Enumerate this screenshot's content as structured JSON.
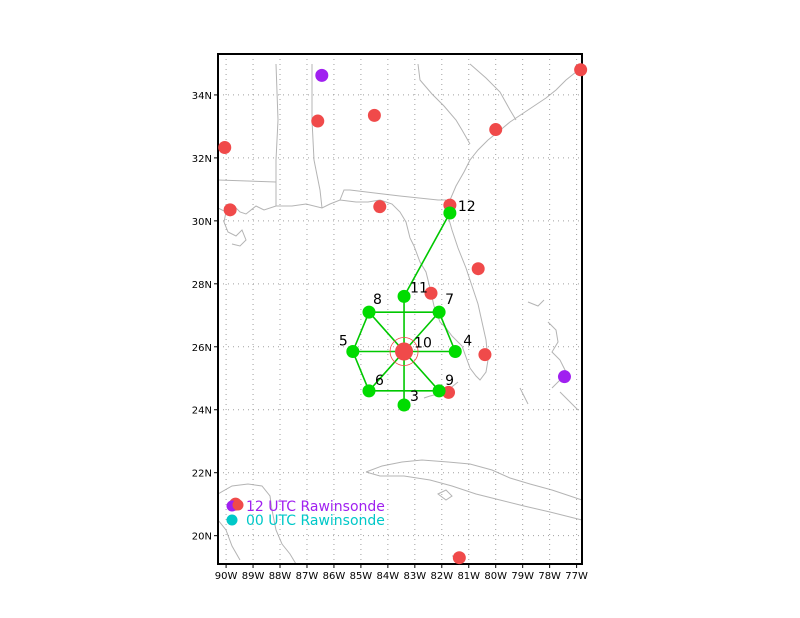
{
  "map": {
    "lon_range": [
      -90.3,
      -76.8
    ],
    "lat_range": [
      19.1,
      35.3
    ],
    "lon_ticks": [
      -90,
      -89,
      -88,
      -87,
      -86,
      -85,
      -84,
      -83,
      -82,
      -81,
      -80,
      -79,
      -78,
      -77
    ],
    "lon_tick_labels": [
      "90W",
      "89W",
      "88W",
      "87W",
      "86W",
      "85W",
      "84W",
      "83W",
      "82W",
      "81W",
      "80W",
      "79W",
      "78W",
      "77W"
    ],
    "lat_ticks": [
      20,
      22,
      24,
      26,
      28,
      30,
      32,
      34
    ],
    "lat_tick_labels": [
      "20N",
      "22N",
      "24N",
      "26N",
      "28N",
      "30N",
      "32N",
      "34N"
    ],
    "grid": true,
    "colors": {
      "frame": "#000000",
      "coast": "#b4b4b4",
      "grid": "#a0a0a0",
      "raob_12": "#a020f0",
      "raob_00": "#00c8c8",
      "raob_mixed": "#f04a4a",
      "dropsonde": "#00dc00",
      "track": "#00c800"
    }
  },
  "legend": {
    "raob_12_label": "12 UTC Rawinsonde",
    "raob_00_label": "00 UTC Rawinsonde"
  },
  "rawinsondes_red": [
    {
      "lon": -76.85,
      "lat": 34.8
    },
    {
      "lon": -80.0,
      "lat": 32.9
    },
    {
      "lon": -84.5,
      "lat": 33.35
    },
    {
      "lon": -86.6,
      "lat": 33.17
    },
    {
      "lon": -90.05,
      "lat": 32.33
    },
    {
      "lon": -89.85,
      "lat": 30.35
    },
    {
      "lon": -84.3,
      "lat": 30.45
    },
    {
      "lon": -81.7,
      "lat": 30.5
    },
    {
      "lon": -80.65,
      "lat": 28.48
    },
    {
      "lon": -82.4,
      "lat": 27.7
    },
    {
      "lon": -80.4,
      "lat": 25.75
    },
    {
      "lon": -81.75,
      "lat": 24.55
    },
    {
      "lon": -81.35,
      "lat": 19.3
    },
    {
      "lon": -89.65,
      "lat": 21.0
    }
  ],
  "rawinsondes_purple": [
    {
      "lon": -86.45,
      "lat": 34.62
    },
    {
      "lon": -77.45,
      "lat": 25.05
    }
  ],
  "center_point": {
    "lon": -83.4,
    "lat": 25.85,
    "label": "10"
  },
  "dropsondes": [
    {
      "lon": -83.4,
      "lat": 24.15,
      "label": "3"
    },
    {
      "lon": -81.5,
      "lat": 25.85,
      "label": "4"
    },
    {
      "lon": -85.3,
      "lat": 25.85,
      "label": "5"
    },
    {
      "lon": -82.1,
      "lat": 27.1,
      "label": "7"
    },
    {
      "lon": -84.7,
      "lat": 27.1,
      "label": "8"
    },
    {
      "lon": -84.7,
      "lat": 24.6,
      "label": "6"
    },
    {
      "lon": -82.1,
      "lat": 24.6,
      "label": "9"
    },
    {
      "lon": -83.4,
      "lat": 27.6,
      "label": "11"
    },
    {
      "lon": -81.7,
      "lat": 30.25,
      "label": "12"
    }
  ]
}
